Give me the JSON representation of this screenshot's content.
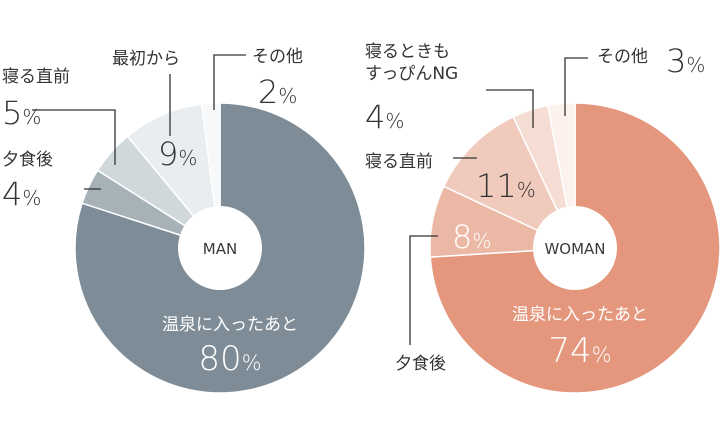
{
  "chart_data": [
    {
      "type": "pie",
      "center_label": "MAN",
      "slices": [
        {
          "label": "温泉に入ったあと",
          "value": 80,
          "value_text": "80",
          "color": "#7d8c96"
        },
        {
          "label": "夕食後",
          "value": 4,
          "value_text": "4",
          "color": "#a6b1b8"
        },
        {
          "label": "寝る直前",
          "value": 5,
          "value_text": "5",
          "color": "#d1d8dc"
        },
        {
          "label": "最初から",
          "value": 9,
          "value_text": "9",
          "color": "#e9edef"
        },
        {
          "label": "その他",
          "value": 2,
          "value_text": "2",
          "color": "#f7f8f9"
        }
      ]
    },
    {
      "type": "pie",
      "center_label": "WOMAN",
      "slices": [
        {
          "label": "温泉に入ったあと",
          "value": 74,
          "value_text": "74",
          "color": "#e4977d"
        },
        {
          "label": "夕食後",
          "value": 8,
          "value_text": "8",
          "color": "#ecb8a6"
        },
        {
          "label": "寝る直前",
          "value": 11,
          "value_text": "11",
          "color": "#f0cbbd"
        },
        {
          "label": "寝るときもすっぴんNG",
          "label_lines": [
            "寝るときも",
            "すっぴんNG"
          ],
          "value": 4,
          "value_text": "4",
          "color": "#f6ddd4"
        },
        {
          "label": "その他",
          "value": 3,
          "value_text": "3",
          "color": "#fcf1ed"
        }
      ]
    }
  ],
  "percent_sign": "%"
}
